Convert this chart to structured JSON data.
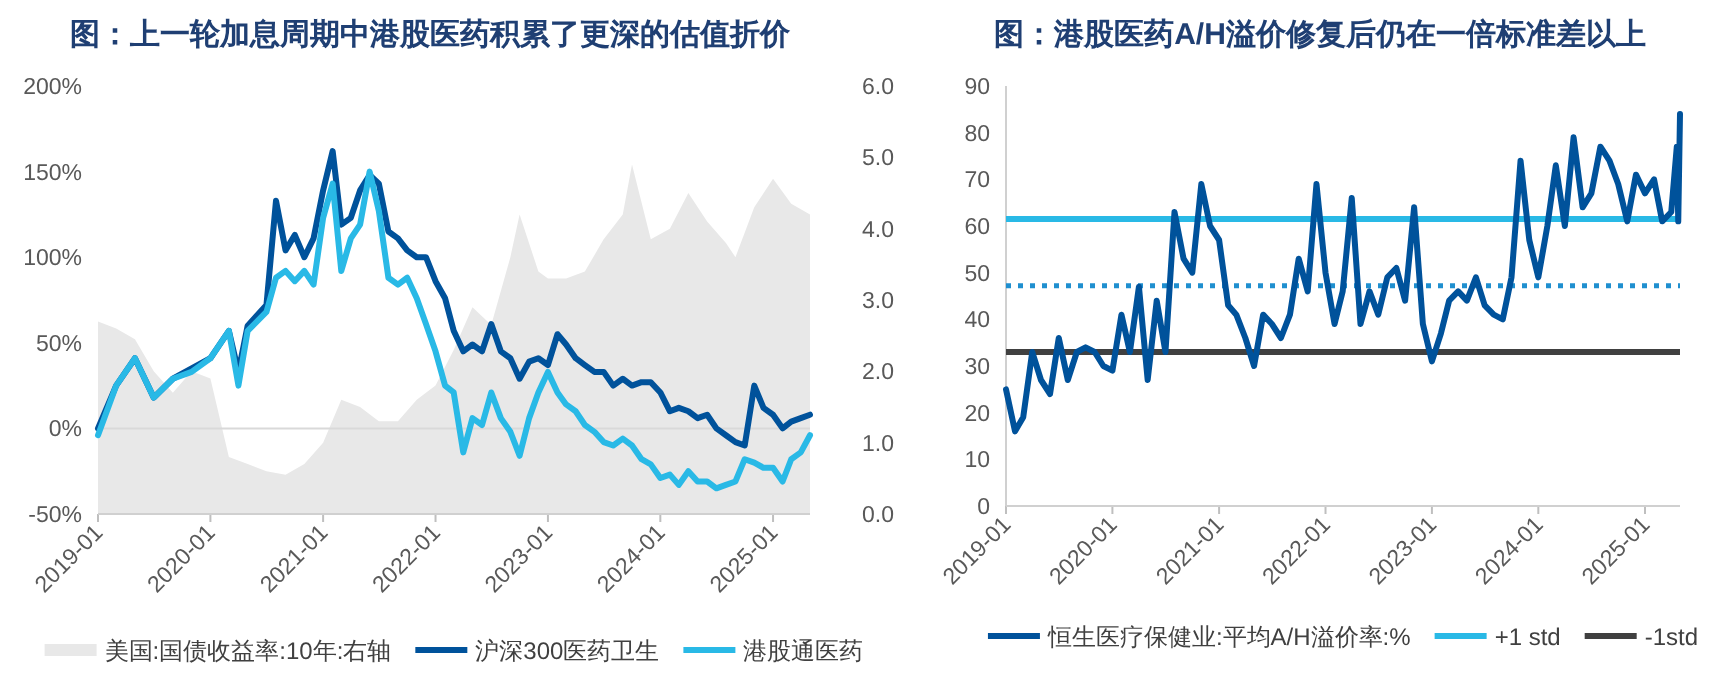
{
  "chart_data": [
    {
      "type": "line",
      "title": "图：上一轮加息周期中港股医药积累了更深的估值折价",
      "xlim": [
        "2019-01",
        "2025-05"
      ],
      "xticks": [
        "2019-01",
        "2020-01",
        "2021-01",
        "2022-01",
        "2023-01",
        "2024-01",
        "2025-01"
      ],
      "ylim": [
        -50,
        200
      ],
      "yticks": [
        {
          "value": -50,
          "label": "-50%"
        },
        {
          "value": 0,
          "label": "0%"
        },
        {
          "value": 50,
          "label": "50%"
        },
        {
          "value": 100,
          "label": "100%"
        },
        {
          "value": 150,
          "label": "150%"
        },
        {
          "value": 200,
          "label": "200%"
        }
      ],
      "y2lim": [
        0,
        6
      ],
      "y2ticks": [
        {
          "value": 0,
          "label": "0.0"
        },
        {
          "value": 1,
          "label": "1.0"
        },
        {
          "value": 2,
          "label": "2.0"
        },
        {
          "value": 3,
          "label": "3.0"
        },
        {
          "value": 4,
          "label": "4.0"
        },
        {
          "value": 5,
          "label": "5.0"
        },
        {
          "value": 6,
          "label": "6.0"
        }
      ],
      "grid": false,
      "legend": "bottom",
      "ref_lines": [
        {
          "axis": "y",
          "value": 0,
          "color": "#d9d9d9"
        }
      ],
      "series": [
        {
          "name": "美国:国债收益率:10年:右轴",
          "type": "area",
          "axis": "y2",
          "color": "#e8e8e8",
          "x": [
            "2019-01",
            "2019-03",
            "2019-05",
            "2019-07",
            "2019-09",
            "2019-11",
            "2020-01",
            "2020-03",
            "2020-05",
            "2020-07",
            "2020-09",
            "2020-11",
            "2021-01",
            "2021-03",
            "2021-05",
            "2021-07",
            "2021-09",
            "2021-11",
            "2022-01",
            "2022-03",
            "2022-05",
            "2022-07",
            "2022-09",
            "2022-10",
            "2022-12",
            "2023-01",
            "2023-03",
            "2023-05",
            "2023-07",
            "2023-09",
            "2023-10",
            "2023-12",
            "2024-02",
            "2024-04",
            "2024-06",
            "2024-08",
            "2024-09",
            "2024-11",
            "2025-01",
            "2025-03",
            "2025-05"
          ],
          "values": [
            2.7,
            2.6,
            2.45,
            2.0,
            1.7,
            2.0,
            1.9,
            0.8,
            0.7,
            0.6,
            0.55,
            0.7,
            1.0,
            1.6,
            1.5,
            1.3,
            1.3,
            1.6,
            1.8,
            2.3,
            2.9,
            2.65,
            3.6,
            4.2,
            3.4,
            3.3,
            3.3,
            3.4,
            3.85,
            4.2,
            4.9,
            3.85,
            4.0,
            4.5,
            4.1,
            3.8,
            3.6,
            4.3,
            4.7,
            4.35,
            4.2
          ]
        },
        {
          "name": "沪深300医药卫生",
          "color": "#00529b",
          "x": [
            "2019-01",
            "2019-03",
            "2019-05",
            "2019-07",
            "2019-09",
            "2019-11",
            "2020-01",
            "2020-03",
            "2020-04",
            "2020-05",
            "2020-07",
            "2020-08",
            "2020-09",
            "2020-10",
            "2020-11",
            "2020-12",
            "2021-01",
            "2021-02",
            "2021-03",
            "2021-04",
            "2021-05",
            "2021-06",
            "2021-07",
            "2021-08",
            "2021-09",
            "2021-10",
            "2021-11",
            "2021-12",
            "2022-01",
            "2022-02",
            "2022-03",
            "2022-04",
            "2022-05",
            "2022-06",
            "2022-07",
            "2022-08",
            "2022-09",
            "2022-10",
            "2022-11",
            "2022-12",
            "2023-01",
            "2023-02",
            "2023-03",
            "2023-04",
            "2023-05",
            "2023-06",
            "2023-07",
            "2023-08",
            "2023-09",
            "2023-10",
            "2023-11",
            "2023-12",
            "2024-01",
            "2024-02",
            "2024-03",
            "2024-04",
            "2024-05",
            "2024-06",
            "2024-07",
            "2024-08",
            "2024-09",
            "2024-10",
            "2024-11",
            "2024-12",
            "2025-01",
            "2025-02",
            "2025-03",
            "2025-04",
            "2025-05"
          ],
          "values": [
            0,
            25,
            41,
            18,
            29,
            35,
            41,
            57,
            33,
            60,
            72,
            133,
            104,
            113,
            100,
            111,
            139,
            162,
            119,
            123,
            139,
            148,
            143,
            115,
            111,
            104,
            100,
            100,
            86,
            76,
            57,
            45,
            49,
            45,
            61,
            45,
            41,
            29,
            39,
            41,
            37,
            55,
            49,
            41,
            37,
            33,
            33,
            25,
            29,
            25,
            27,
            27,
            21,
            10,
            12,
            10,
            6,
            8,
            0,
            -4,
            -8,
            -10,
            25,
            12,
            8,
            0,
            4,
            6,
            8
          ]
        },
        {
          "name": "港股通医药",
          "color": "#29b9e6",
          "x": [
            "2019-01",
            "2019-03",
            "2019-05",
            "2019-07",
            "2019-09",
            "2019-11",
            "2020-01",
            "2020-03",
            "2020-04",
            "2020-05",
            "2020-07",
            "2020-08",
            "2020-09",
            "2020-10",
            "2020-11",
            "2020-12",
            "2021-01",
            "2021-02",
            "2021-03",
            "2021-04",
            "2021-05",
            "2021-06",
            "2021-07",
            "2021-08",
            "2021-09",
            "2021-10",
            "2021-11",
            "2021-12",
            "2022-01",
            "2022-02",
            "2022-03",
            "2022-04",
            "2022-05",
            "2022-06",
            "2022-07",
            "2022-08",
            "2022-09",
            "2022-10",
            "2022-11",
            "2022-12",
            "2023-01",
            "2023-02",
            "2023-03",
            "2023-04",
            "2023-05",
            "2023-06",
            "2023-07",
            "2023-08",
            "2023-09",
            "2023-10",
            "2023-11",
            "2023-12",
            "2024-01",
            "2024-02",
            "2024-03",
            "2024-04",
            "2024-05",
            "2024-06",
            "2024-07",
            "2024-08",
            "2024-09",
            "2024-10",
            "2024-11",
            "2024-12",
            "2025-01",
            "2025-02",
            "2025-03",
            "2025-04",
            "2025-05"
          ],
          "values": [
            -4,
            25,
            41,
            18,
            29,
            33,
            41,
            57,
            25,
            57,
            68,
            88,
            92,
            86,
            92,
            84,
            123,
            143,
            92,
            111,
            119,
            150,
            127,
            88,
            84,
            88,
            76,
            61,
            45,
            25,
            21,
            -14,
            6,
            2,
            21,
            6,
            -2,
            -16,
            6,
            21,
            33,
            21,
            14,
            10,
            2,
            -2,
            -8,
            -10,
            -6,
            -10,
            -18,
            -21,
            -29,
            -27,
            -33,
            -25,
            -31,
            -31,
            -35,
            -33,
            -31,
            -18,
            -20,
            -23,
            -23,
            -31,
            -18,
            -14,
            -4
          ]
        }
      ]
    },
    {
      "type": "line",
      "title": "图：港股医药A/H溢价修复后仍在一倍标准差以上",
      "xlim": [
        "2019-01",
        "2025-05"
      ],
      "xticks": [
        "2019-01",
        "2020-01",
        "2021-01",
        "2022-01",
        "2023-01",
        "2024-01",
        "2025-01"
      ],
      "ylim": [
        0,
        90
      ],
      "yticks": [
        0,
        10,
        20,
        30,
        40,
        50,
        60,
        70,
        80,
        90
      ],
      "grid": false,
      "legend": "bottom",
      "ref_lines": [
        {
          "axis": "y",
          "value": 61.5,
          "label": "+1 std",
          "color": "#29b9e6"
        },
        {
          "axis": "y",
          "value": 47.2,
          "color": "#1f8fcf",
          "line_style": "dotted"
        },
        {
          "axis": "y",
          "value": 33,
          "label": "-1std",
          "color": "#404040"
        }
      ],
      "series": [
        {
          "name": "恒生医疗保健业:平均A/H溢价率:%",
          "color": "#00529b",
          "x": [
            "2019-01",
            "2019-02",
            "2019-03",
            "2019-04",
            "2019-05",
            "2019-06",
            "2019-07",
            "2019-08",
            "2019-09",
            "2019-10",
            "2019-11",
            "2019-12",
            "2020-01",
            "2020-02",
            "2020-03",
            "2020-04",
            "2020-05",
            "2020-06",
            "2020-07",
            "2020-08",
            "2020-09",
            "2020-10",
            "2020-11",
            "2020-12",
            "2021-01",
            "2021-02",
            "2021-03",
            "2021-04",
            "2021-05",
            "2021-06",
            "2021-07",
            "2021-08",
            "2021-09",
            "2021-10",
            "2021-11",
            "2021-12",
            "2022-01",
            "2022-02",
            "2022-03",
            "2022-04",
            "2022-05",
            "2022-06",
            "2022-07",
            "2022-08",
            "2022-09",
            "2022-10",
            "2022-11",
            "2022-12",
            "2023-01",
            "2023-02",
            "2023-03",
            "2023-04",
            "2023-05",
            "2023-06",
            "2023-07",
            "2023-08",
            "2023-09",
            "2023-10",
            "2023-11",
            "2023-12",
            "2024-01",
            "2024-02",
            "2024-03",
            "2024-04",
            "2024-05",
            "2024-06",
            "2024-07",
            "2024-08",
            "2024-09",
            "2024-10",
            "2024-11",
            "2024-12",
            "2025-01",
            "2025-02",
            "2025-03",
            "2025-04",
            "2025-04-20",
            "2025-04-25",
            "2025-05"
          ],
          "values": [
            25,
            16,
            19,
            33,
            27,
            24,
            36,
            27,
            33,
            34,
            33,
            30,
            29,
            41,
            33,
            47,
            27,
            44,
            33,
            63,
            53,
            50,
            69,
            60,
            57,
            43,
            41,
            36,
            30,
            41,
            39,
            36,
            41,
            53,
            46,
            69,
            50,
            39,
            46,
            66,
            39,
            46,
            41,
            49,
            51,
            44,
            64,
            39,
            31,
            37,
            44,
            46,
            44,
            49,
            43,
            41,
            40,
            49,
            74,
            57,
            49,
            60,
            73,
            60,
            79,
            64,
            67,
            77,
            74,
            69,
            61,
            71,
            67,
            70,
            61,
            63,
            77,
            61,
            84
          ]
        }
      ]
    }
  ]
}
